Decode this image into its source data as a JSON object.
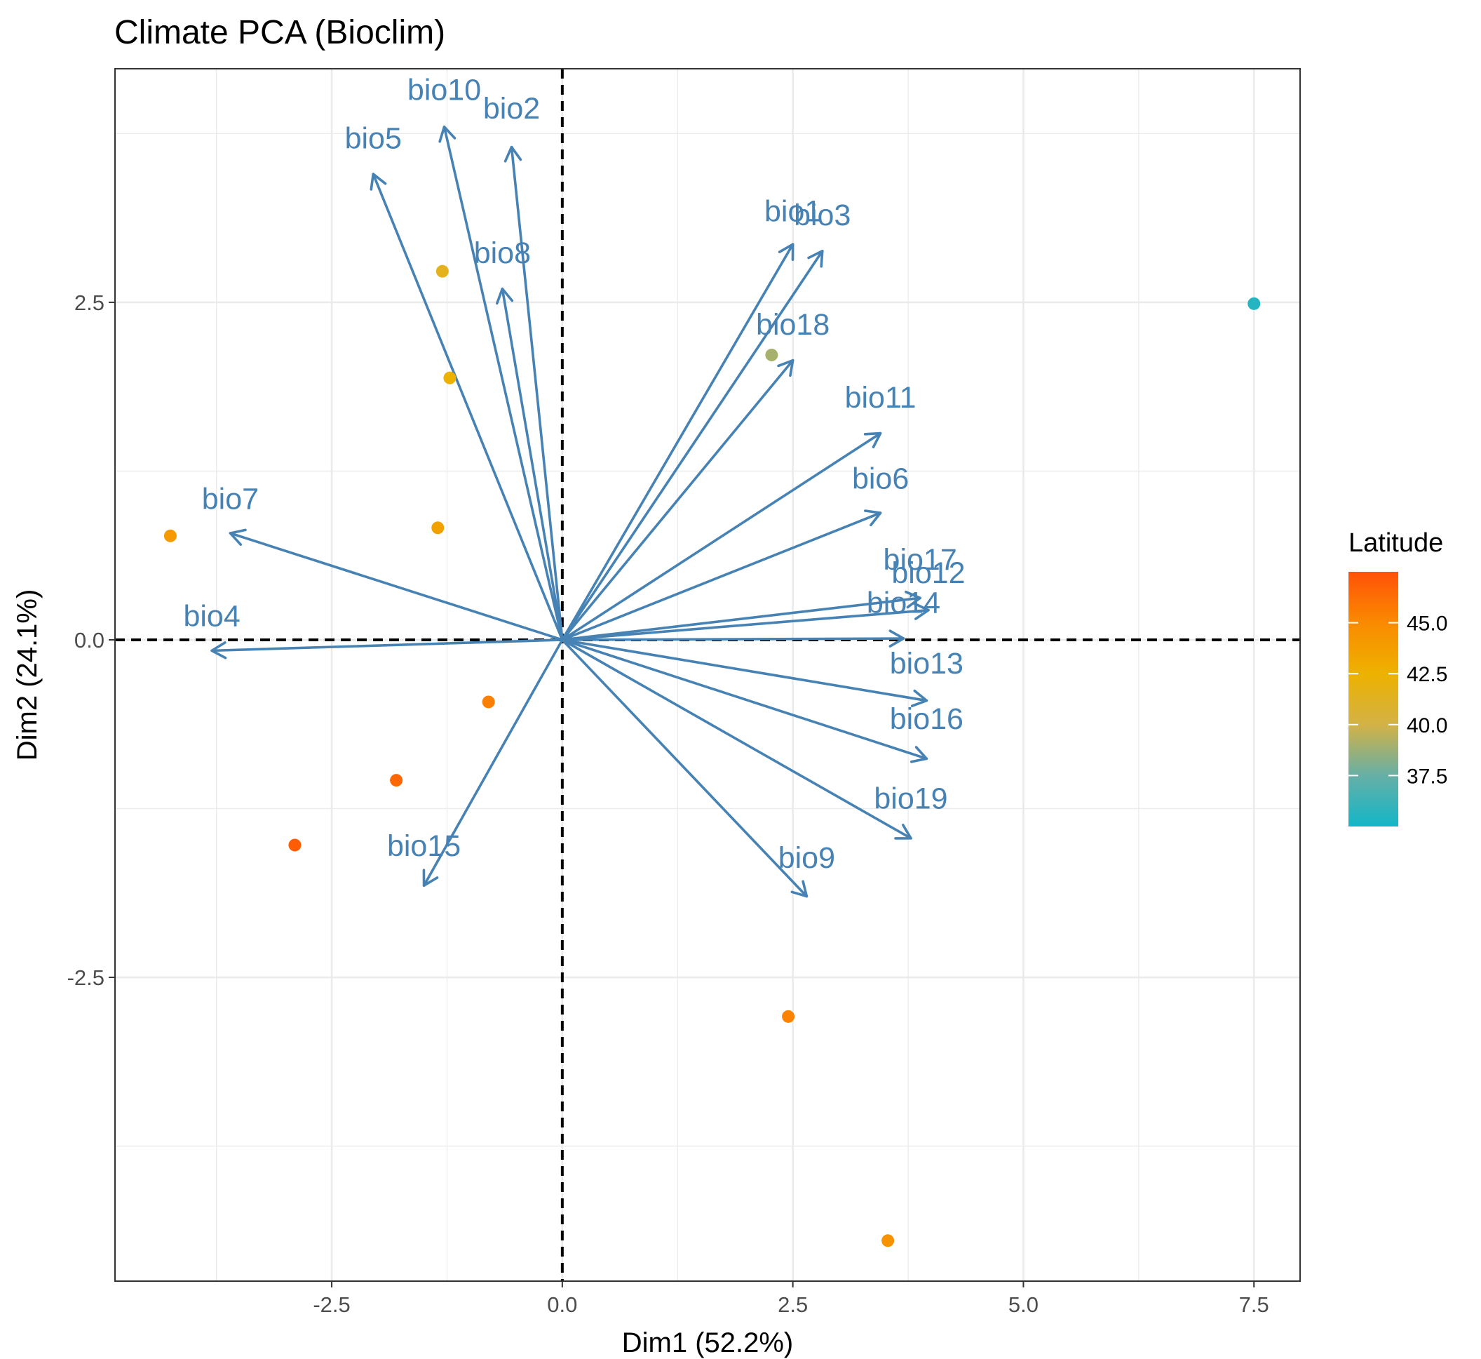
{
  "chart_data": {
    "type": "scatter",
    "title": "Climate PCA (Bioclim)",
    "xlabel": "Dim1 (52.2%)",
    "ylabel": "Dim2 (24.1%)",
    "xlim": [
      -4.85,
      8.0
    ],
    "ylim": [
      -4.75,
      4.23
    ],
    "x_ticks": [
      -2.5,
      0.0,
      2.5,
      5.0,
      7.5
    ],
    "x_tick_labels": [
      "-2.5",
      "0.0",
      "2.5",
      "5.0",
      "7.5"
    ],
    "y_ticks": [
      -2.5,
      0.0,
      2.5
    ],
    "y_tick_labels": [
      "-2.5",
      "0.0",
      "2.5"
    ],
    "grid": true,
    "reference_lines": {
      "x": 0,
      "y": 0,
      "style": "dashed"
    },
    "colors": {
      "arrow": "#4682B4",
      "reference_line": "#000000",
      "grid": "#EBEBEB",
      "panel_border": "#333333"
    },
    "individuals": [
      {
        "x": 7.5,
        "y": 2.49,
        "latitude": 35.5
      },
      {
        "x": 2.27,
        "y": 2.11,
        "latitude": 39.0
      },
      {
        "x": -1.3,
        "y": 2.73,
        "latitude": 41.5
      },
      {
        "x": -1.22,
        "y": 1.94,
        "latitude": 42.5
      },
      {
        "x": -4.25,
        "y": 0.77,
        "latitude": 44.0
      },
      {
        "x": -1.35,
        "y": 0.83,
        "latitude": 43.5
      },
      {
        "x": -0.8,
        "y": -0.46,
        "latitude": 45.5
      },
      {
        "x": -1.8,
        "y": -1.04,
        "latitude": 46.5
      },
      {
        "x": -2.9,
        "y": -1.52,
        "latitude": 47.0
      },
      {
        "x": 2.45,
        "y": -2.79,
        "latitude": 45.3
      },
      {
        "x": 3.53,
        "y": -4.45,
        "latitude": 44.5
      }
    ],
    "variables": [
      {
        "name": "bio1",
        "x": 2.5,
        "y": 2.93,
        "label_x": 2.5,
        "label_y": 3.1
      },
      {
        "name": "bio2",
        "x": -0.55,
        "y": 3.65,
        "label_x": -0.55,
        "label_y": 3.86
      },
      {
        "name": "bio3",
        "x": 2.82,
        "y": 2.88,
        "label_x": 2.82,
        "label_y": 3.07
      },
      {
        "name": "bio4",
        "x": -3.8,
        "y": -0.08,
        "label_x": -3.8,
        "label_y": 0.1
      },
      {
        "name": "bio5",
        "x": -2.05,
        "y": 3.45,
        "label_x": -2.05,
        "label_y": 3.64
      },
      {
        "name": "bio6",
        "x": 3.45,
        "y": 0.94,
        "label_x": 3.45,
        "label_y": 1.12
      },
      {
        "name": "bio7",
        "x": -3.6,
        "y": 0.79,
        "label_x": -3.6,
        "label_y": 0.97
      },
      {
        "name": "bio8",
        "x": -0.65,
        "y": 2.6,
        "label_x": -0.65,
        "label_y": 2.79
      },
      {
        "name": "bio9",
        "x": 2.65,
        "y": -1.9,
        "label_x": 2.65,
        "label_y": -1.69
      },
      {
        "name": "bio10",
        "x": -1.28,
        "y": 3.8,
        "label_x": -1.28,
        "label_y": 4.0
      },
      {
        "name": "bio11",
        "x": 3.45,
        "y": 1.53,
        "label_x": 3.45,
        "label_y": 1.72
      },
      {
        "name": "bio12",
        "x": 3.97,
        "y": 0.22,
        "label_x": 3.97,
        "label_y": 0.42
      },
      {
        "name": "bio13",
        "x": 3.95,
        "y": -0.45,
        "label_x": 3.95,
        "label_y": -0.25
      },
      {
        "name": "bio14",
        "x": 3.7,
        "y": 0.01,
        "label_x": 3.7,
        "label_y": 0.2
      },
      {
        "name": "bio15",
        "x": -1.5,
        "y": -1.82,
        "label_x": -1.5,
        "label_y": -1.6
      },
      {
        "name": "bio16",
        "x": 3.95,
        "y": -0.88,
        "label_x": 3.95,
        "label_y": -0.66
      },
      {
        "name": "bio17",
        "x": 3.88,
        "y": 0.31,
        "label_x": 3.88,
        "label_y": 0.52
      },
      {
        "name": "bio18",
        "x": 2.5,
        "y": 2.07,
        "label_x": 2.5,
        "label_y": 2.26
      },
      {
        "name": "bio19",
        "x": 3.78,
        "y": -1.47,
        "label_x": 3.78,
        "label_y": -1.25
      }
    ],
    "color_scale": {
      "title": "Latitude",
      "min": 35.0,
      "max": 47.5,
      "stops": [
        {
          "value": 35.0,
          "color": "#13B6C8"
        },
        {
          "value": 37.5,
          "color": "#66AFA6"
        },
        {
          "value": 40.0,
          "color": "#D3B246"
        },
        {
          "value": 42.5,
          "color": "#EDB200"
        },
        {
          "value": 45.0,
          "color": "#FA8A00"
        },
        {
          "value": 47.5,
          "color": "#FF5208"
        }
      ],
      "ticks": [
        37.5,
        40.0,
        42.5,
        45.0
      ],
      "tick_labels": [
        "37.5",
        "40.0",
        "42.5",
        "45.0"
      ],
      "position": "right"
    }
  }
}
